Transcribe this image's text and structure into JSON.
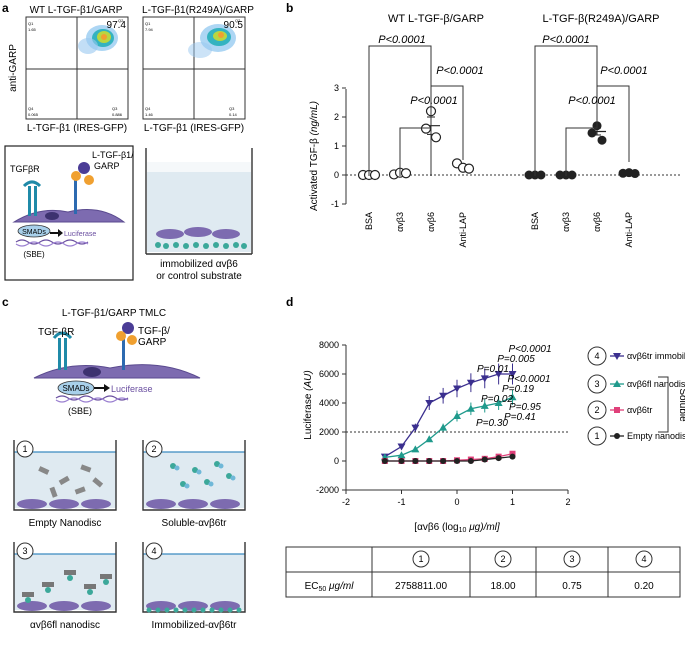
{
  "panel_labels": [
    "a",
    "b",
    "c",
    "d"
  ],
  "panel_a": {
    "flow_plots": [
      {
        "title": "WT L-TGF-β1/GARP",
        "percent": "97.4",
        "ylabel": "anti-GARP",
        "xlabel": "L-TGF-β1 (IRES-GFP)",
        "q_labels": [
          "Q1",
          "Q2",
          "Q3",
          "Q4"
        ],
        "q_values": [
          "1.65",
          "97.4",
          "0.886",
          "0.065"
        ]
      },
      {
        "title": "L-TGF-β1(R249A)/GARP",
        "percent": "90.5",
        "ylabel": "",
        "xlabel": "L-TGF-β1 (IRES-GFP)",
        "q_labels": [
          "Q1",
          "Q2",
          "Q3",
          "Q4"
        ],
        "q_values": [
          "7.94",
          "90.5",
          "0.14",
          "1.46"
        ]
      }
    ],
    "schematic": {
      "receptor": "TGFβR",
      "complex_line1": "L-TGF-β1/",
      "complex_line2": "GARP",
      "smads": "SMADs",
      "reporter": "Luciferase",
      "sbe": "(SBE)"
    },
    "well_caption_line1": "immobilized αvβ6",
    "well_caption_line2": "or control substrate"
  },
  "panel_b": {
    "ylabel": "Activated TGF-β ",
    "ylabel_unit": "(ng/mL)",
    "groups": [
      {
        "title": "WT L-TGF-β/GARP",
        "categories": [
          "BSA",
          "αvβ3",
          "αvβ6",
          "Anti-LAP"
        ],
        "marker": "open",
        "points": [
          [
            0,
            0,
            0
          ],
          [
            0.02,
            0.08,
            0.06
          ],
          [
            2.2,
            1.6,
            1.3
          ],
          [
            0.4,
            0.25,
            0.22
          ]
        ],
        "means": [
          0,
          0.05,
          1.7,
          0.3
        ]
      },
      {
        "title": "L-TGF-β(R249A)/GARP",
        "categories": [
          "BSA",
          "αvβ3",
          "αvβ6",
          "Anti-LAP"
        ],
        "marker": "filled",
        "points": [
          [
            0,
            0,
            0
          ],
          [
            0,
            0,
            0
          ],
          [
            1.7,
            1.45,
            1.2
          ],
          [
            0.06,
            0.08,
            0.05
          ]
        ],
        "means": [
          0,
          0,
          1.5,
          0.07
        ]
      }
    ],
    "yticks": [
      "3",
      "2",
      "1",
      "0",
      "-1"
    ],
    "brackets": [
      "P<0.0001",
      "P<0.0001",
      "P<0.0001",
      "P<0.0001",
      "P<0.0001",
      "P<0.0001"
    ]
  },
  "panel_c": {
    "title": "L-TGF-β1/GARP TMLC",
    "receptor": "TGF-βR",
    "complex_line1": "TGF-β/",
    "complex_line2": "GARP",
    "smads": "SMADs",
    "reporter": "Luciferase",
    "sbe": "(SBE)",
    "wells": [
      {
        "num": "1",
        "label": "Empty Nanodisc"
      },
      {
        "num": "2",
        "label": "Soluble-αvβ6tr"
      },
      {
        "num": "3",
        "label": "αvβ6fl nanodisc"
      },
      {
        "num": "4",
        "label": "Immobilized-αvβ6tr"
      }
    ]
  },
  "chart_data": {
    "type": "line",
    "title": "",
    "xlabel_pre": "[αvβ6 (log",
    "xlabel_sub": "10",
    "xlabel_post": " μg)/ml]",
    "ylabel": "Luciferase (AU)",
    "xlim": [
      -2,
      2
    ],
    "ylim": [
      -2000,
      8000
    ],
    "xticks": [
      "-2",
      "-1",
      "0",
      "1",
      "2"
    ],
    "yticks": [
      "8000",
      "6000",
      "4000",
      "2000",
      "0",
      "-2000"
    ],
    "series": [
      {
        "num": "4",
        "name": "αvβ6tr immobilized",
        "color": "#3b2f8f",
        "marker": "triangle-down",
        "x": [
          -1.3,
          -1.0,
          -0.75,
          -0.5,
          -0.25,
          0.0,
          0.25,
          0.5,
          0.75,
          1.0
        ],
        "y": [
          300,
          1000,
          2300,
          4000,
          4500,
          5000,
          5400,
          5700,
          6000,
          6000
        ],
        "p": [
          "P<0.0001",
          "P=0.005",
          "P=0.01"
        ]
      },
      {
        "num": "3",
        "name": "αvβ6fl nanodisc",
        "color": "#1f9a8c",
        "marker": "triangle-up",
        "x": [
          -1.3,
          -1.0,
          -0.75,
          -0.5,
          -0.25,
          0.0,
          0.25,
          0.5,
          0.75,
          1.0
        ],
        "y": [
          250,
          400,
          800,
          1500,
          2300,
          3100,
          3600,
          3800,
          4000,
          4400
        ],
        "p": [
          "P<0.0001",
          "P=0.19",
          "P=0.02"
        ]
      },
      {
        "num": "2",
        "name": "αvβ6tr",
        "color": "#e0407a",
        "marker": "square",
        "x": [
          -1.3,
          -1.0,
          -0.75,
          -0.5,
          -0.25,
          0.0,
          0.25,
          0.5,
          0.75,
          1.0
        ],
        "y": [
          0,
          0,
          0,
          0,
          0,
          50,
          100,
          150,
          300,
          500
        ],
        "p": [
          "P=0.95",
          "P=0.41"
        ]
      },
      {
        "num": "1",
        "name": "Empty nanodisc",
        "color": "#222222",
        "marker": "circle",
        "x": [
          -1.3,
          -1.0,
          -0.75,
          -0.5,
          -0.25,
          0.0,
          0.25,
          0.5,
          0.75,
          1.0
        ],
        "y": [
          0,
          0,
          0,
          0,
          0,
          0,
          0,
          100,
          200,
          300
        ],
        "p": [
          "P=0.30"
        ]
      }
    ],
    "soluble_label": "Soluble"
  },
  "ec50_table": {
    "header": [
      "",
      "1",
      "2",
      "3",
      "4"
    ],
    "row_label_pre": "EC",
    "row_label_sub": "50",
    "row_label_post": " μg/ml",
    "values": [
      "2758811.00",
      "18.00",
      "0.75",
      "0.20"
    ]
  }
}
